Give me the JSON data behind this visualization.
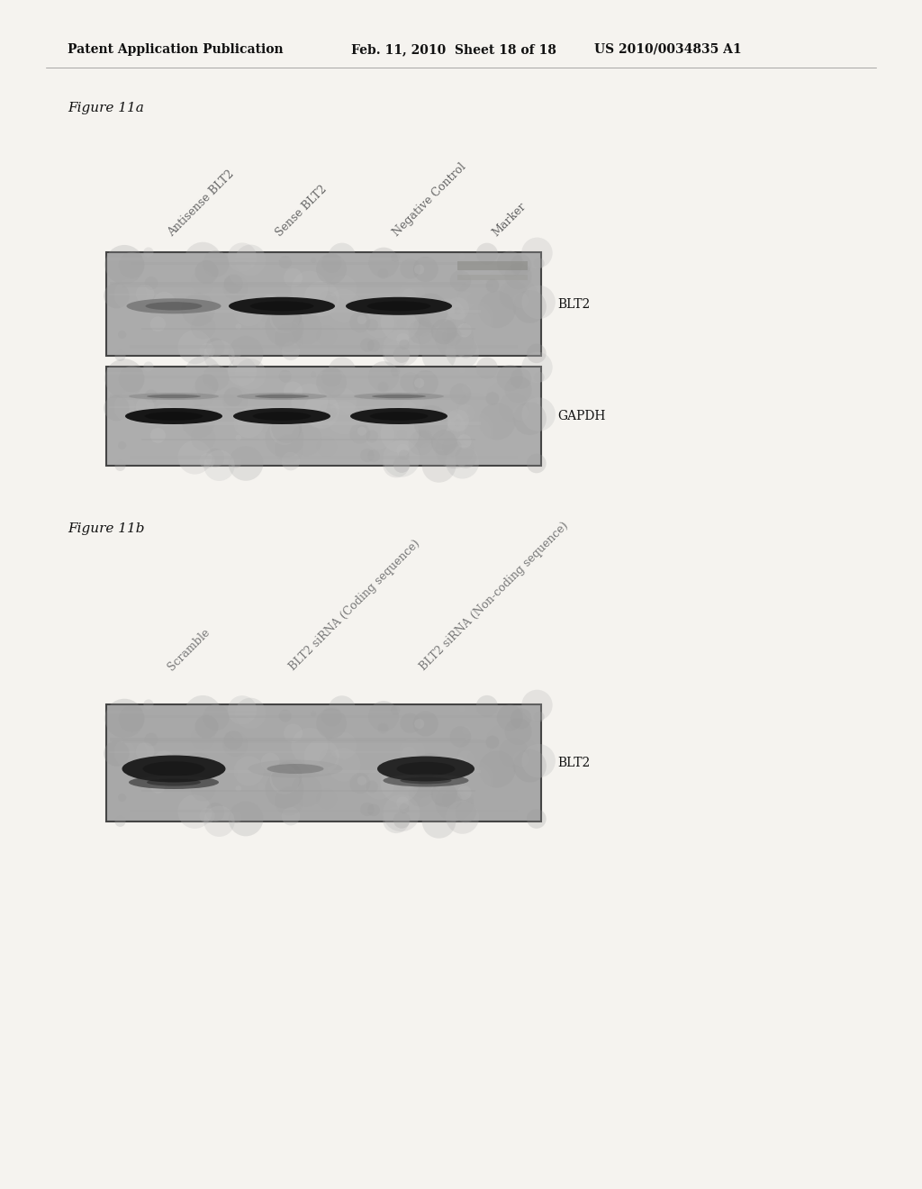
{
  "page_header_left": "Patent Application Publication",
  "page_header_mid": "Feb. 11, 2010  Sheet 18 of 18",
  "page_header_right": "US 2010/0034835 A1",
  "fig11a_label": "Figure 11a",
  "fig11b_label": "Figure 11b",
  "fig11a_col_labels": [
    "Antisense BLT2",
    "Sense BLT2",
    "Negative Control",
    "Marker"
  ],
  "fig11b_col_labels": [
    "Scramble",
    "BLT2 siRNA (Coding sequence)",
    "BLT2 siRNA (Non-coding sequence)"
  ],
  "fig11a_row_labels": [
    "BLT2",
    "GAPDH"
  ],
  "fig11b_row_labels": [
    "BLT2"
  ],
  "page_bg": "#f5f3ef",
  "panel_bg": "#b0aca5",
  "band_dark": 0.08,
  "band_faint": 0.42,
  "header_fontsize": 10,
  "label_fontsize": 10,
  "fig_label_fontsize": 11,
  "col_label_fontsize": 9
}
